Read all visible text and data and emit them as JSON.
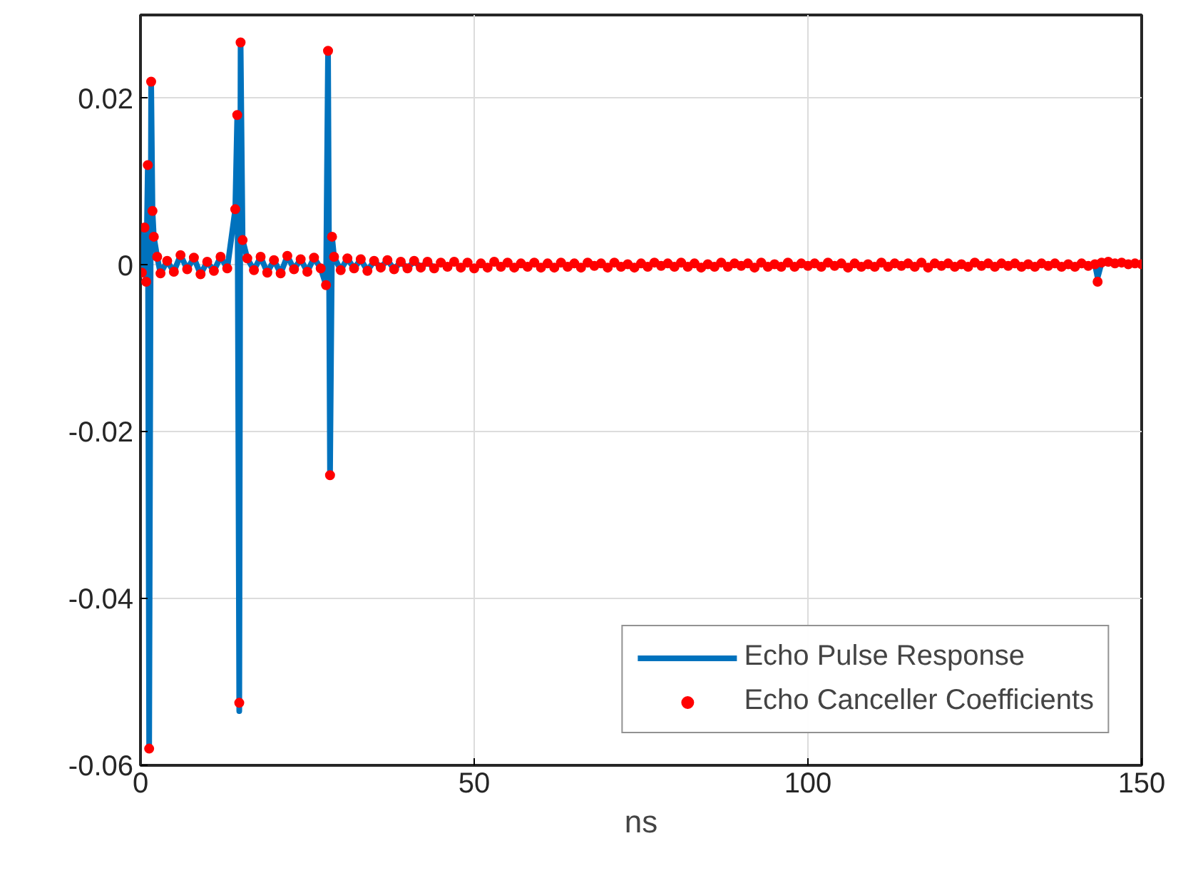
{
  "chart_data": {
    "type": "line",
    "xlabel": "ns",
    "x": [
      0.2,
      0.6,
      0.85,
      1.1,
      1.3,
      1.6,
      1.8,
      2.0,
      2.5,
      3,
      4,
      5,
      6,
      7,
      8,
      9,
      10,
      11,
      12,
      13,
      14.2,
      14.5,
      14.8,
      15.0,
      15.3,
      16,
      17,
      18,
      19,
      20,
      21,
      22,
      23,
      24,
      25,
      26,
      27,
      27.8,
      28.1,
      28.4,
      28.7,
      29,
      30,
      31,
      32,
      33,
      34,
      35,
      36,
      37,
      38,
      39,
      40,
      41,
      42,
      43,
      44,
      45,
      46,
      47,
      48,
      49,
      50,
      51,
      52,
      53,
      54,
      55,
      56,
      57,
      58,
      59,
      60,
      61,
      62,
      63,
      64,
      65,
      66,
      67,
      68,
      69,
      70,
      71,
      72,
      73,
      74,
      75,
      76,
      77,
      78,
      79,
      80,
      81,
      82,
      83,
      84,
      85,
      86,
      87,
      88,
      89,
      90,
      91,
      92,
      93,
      94,
      95,
      96,
      97,
      98,
      99,
      100,
      101,
      102,
      103,
      104,
      105,
      106,
      107,
      108,
      109,
      110,
      111,
      112,
      113,
      114,
      115,
      116,
      117,
      118,
      119,
      120,
      121,
      122,
      123,
      124,
      125,
      126,
      127,
      128,
      129,
      130,
      131,
      132,
      133,
      134,
      135,
      136,
      137,
      138,
      139,
      140,
      141,
      142,
      143,
      143.4,
      144,
      145,
      146,
      147,
      148,
      149,
      150
    ],
    "series": [
      {
        "name": "Echo Pulse Response",
        "color": "#0072bd",
        "values": [
          -0.0009,
          0.0045,
          -0.002,
          0.012,
          -0.058,
          0.022,
          0.0065,
          0.0034,
          0.001,
          -0.001,
          0.0005,
          -0.0008,
          0.0012,
          -0.0005,
          0.0009,
          -0.0011,
          0.0004,
          -0.0007,
          0.001,
          -0.0004,
          0.0067,
          0.018,
          -0.0535,
          0.0267,
          0.003,
          0.0008,
          -0.0006,
          0.001,
          -0.0009,
          0.0006,
          -0.001,
          0.0011,
          -0.0005,
          0.0007,
          -0.0008,
          0.0009,
          -0.0004,
          -0.0024,
          0.0257,
          -0.0252,
          0.0034,
          0.001,
          -0.0006,
          0.0008,
          -0.0004,
          0.0007,
          -0.0007,
          0.0005,
          -0.0003,
          0.0006,
          -0.0005,
          0.0004,
          -0.0004,
          0.0005,
          -0.0003,
          0.0004,
          -0.0004,
          null,
          null,
          null,
          null,
          null,
          null,
          null,
          null,
          null,
          null,
          null,
          null,
          null,
          null,
          null,
          null,
          null,
          null,
          null,
          null,
          null,
          null,
          null,
          null,
          null,
          null,
          null,
          null,
          null,
          null,
          null,
          null,
          null,
          null,
          null,
          null,
          null,
          null,
          null,
          null,
          null,
          null,
          null,
          null,
          null,
          null,
          null,
          null,
          null,
          null,
          null,
          null,
          null,
          null,
          null,
          null,
          null,
          null,
          null,
          null,
          null,
          null,
          null,
          null,
          null,
          null,
          null,
          null,
          null,
          null,
          null,
          null,
          null,
          null,
          null,
          null,
          null,
          null,
          null,
          null,
          null,
          null,
          null,
          null,
          null,
          null,
          null,
          null,
          null,
          null,
          null,
          null,
          null,
          null,
          null,
          null,
          null,
          null,
          0.0001,
          -0.0015,
          0.0003,
          null,
          null,
          null,
          null,
          null,
          null
        ]
      },
      {
        "name": "Echo Canceller Coefficients",
        "type": "scatter",
        "marker": "circle",
        "color": "#ff0000",
        "values": [
          -0.0009,
          0.0045,
          -0.002,
          0.012,
          -0.058,
          0.022,
          0.0065,
          0.0034,
          0.001,
          -0.001,
          0.0005,
          -0.0008,
          0.0012,
          -0.0005,
          0.0009,
          -0.0011,
          0.0004,
          -0.0007,
          0.001,
          -0.0004,
          0.0067,
          0.018,
          -0.0525,
          0.0267,
          0.003,
          0.0008,
          -0.0006,
          0.001,
          -0.0009,
          0.0006,
          -0.001,
          0.0011,
          -0.0005,
          0.0007,
          -0.0008,
          0.0009,
          -0.0004,
          -0.0024,
          0.0257,
          -0.0252,
          0.0034,
          0.001,
          -0.0006,
          0.0008,
          -0.0004,
          0.0007,
          -0.0007,
          0.0005,
          -0.0003,
          0.0006,
          -0.0005,
          0.0004,
          -0.0004,
          0.0005,
          -0.0003,
          0.0004,
          -0.0004,
          0.0003,
          -0.0002,
          0.0004,
          -0.0003,
          0.0003,
          -0.0004,
          0.0002,
          -0.0003,
          0.0004,
          -0.0002,
          0.0003,
          -0.0003,
          0.0002,
          -0.0002,
          0.0003,
          -0.0003,
          0.0002,
          -0.0003,
          0.0003,
          -0.0002,
          0.0002,
          -0.0003,
          0.0003,
          -0.0001,
          0.0002,
          -0.0003,
          0.0003,
          -0.0002,
          0.0001,
          -0.0003,
          0.0002,
          -0.0002,
          0.0003,
          -0.0001,
          0.0002,
          -0.0002,
          0.0003,
          -0.0002,
          0.0002,
          -0.0003,
          0.0001,
          -0.0002,
          0.0003,
          -0.0002,
          0.0002,
          -0.0001,
          0.0002,
          -0.0003,
          0.0003,
          -0.0002,
          0.0001,
          -0.0002,
          0.0003,
          -0.0002,
          0.0002,
          -0.0001,
          0.0002,
          -0.0002,
          0.0003,
          -0.0001,
          0.0002,
          -0.0003,
          0.0002,
          -0.0002,
          0.0001,
          -0.0002,
          0.0003,
          -0.0002,
          0.0002,
          -0.0001,
          0.0002,
          -0.0002,
          0.0003,
          -0.0003,
          0.0002,
          -0.0001,
          0.0002,
          -0.0002,
          0.0001,
          -0.0002,
          0.0003,
          -0.0001,
          0.0002,
          -0.0002,
          0.0002,
          -0.0001,
          0.0002,
          -0.0002,
          0.0001,
          -0.0002,
          0.0002,
          -0.0001,
          0.0002,
          -0.0002,
          0.0001,
          -0.0002,
          0.0002,
          -0.0001,
          0.0001,
          -0.002,
          0.0003,
          0.0004,
          0.0002,
          0.0003,
          0.0001,
          0.0002,
          0.0001
        ]
      }
    ],
    "xlim": [
      0,
      150
    ],
    "xticks": [
      0,
      50,
      100,
      150
    ],
    "ylim": [
      -0.06,
      0.03
    ],
    "yticks": [
      {
        "value": -0.06,
        "label": "-0.06"
      },
      {
        "value": -0.04,
        "label": "-0.04"
      },
      {
        "value": -0.02,
        "label": "-0.02"
      },
      {
        "value": 0,
        "label": "0"
      },
      {
        "value": 0.02,
        "label": "0.02"
      }
    ],
    "grid": true,
    "legend": "bottom right",
    "line_style": "solid"
  }
}
